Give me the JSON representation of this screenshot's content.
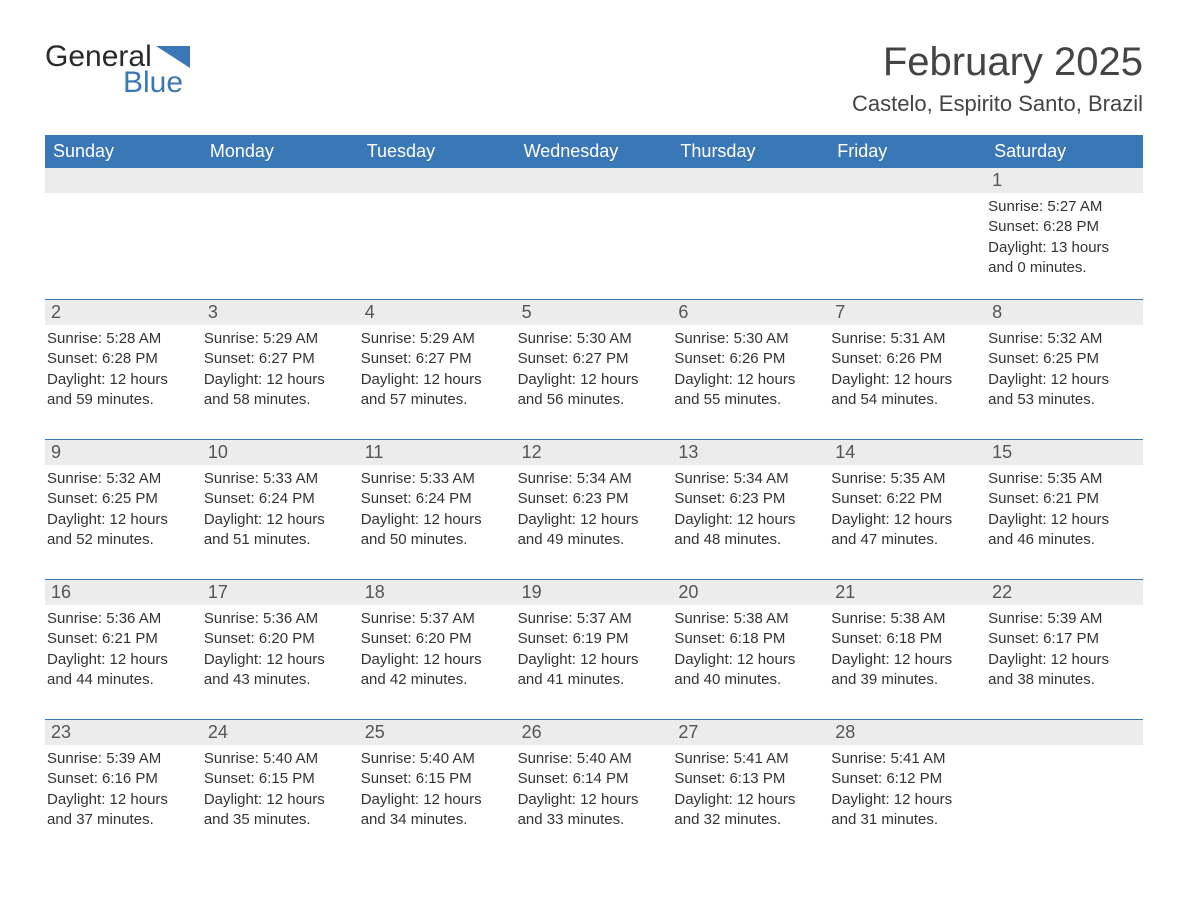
{
  "colors": {
    "accent": "#3a77b7",
    "background": "#ffffff",
    "strip": "#ececec",
    "text": "#333333",
    "title": "#444444"
  },
  "logo": {
    "word1": "General",
    "word2": "Blue",
    "icon_fill": "#3a77b7"
  },
  "header": {
    "month_title": "February 2025",
    "location": "Castelo, Espirito Santo, Brazil"
  },
  "weekdays": [
    "Sunday",
    "Monday",
    "Tuesday",
    "Wednesday",
    "Thursday",
    "Friday",
    "Saturday"
  ],
  "calendar": {
    "type": "table",
    "columns": 7,
    "header_bg": "#3a77b7",
    "header_text_color": "#ffffff",
    "strip_bg": "#ececec",
    "row_divider_color": "#3a77b7",
    "daynum_fontsize": 18,
    "body_fontsize": 15,
    "weekday_fontsize": 18
  },
  "weeks": [
    [
      {
        "day": "",
        "sunrise": "",
        "sunset": "",
        "daylight": ""
      },
      {
        "day": "",
        "sunrise": "",
        "sunset": "",
        "daylight": ""
      },
      {
        "day": "",
        "sunrise": "",
        "sunset": "",
        "daylight": ""
      },
      {
        "day": "",
        "sunrise": "",
        "sunset": "",
        "daylight": ""
      },
      {
        "day": "",
        "sunrise": "",
        "sunset": "",
        "daylight": ""
      },
      {
        "day": "",
        "sunrise": "",
        "sunset": "",
        "daylight": ""
      },
      {
        "day": "1",
        "sunrise": "Sunrise: 5:27 AM",
        "sunset": "Sunset: 6:28 PM",
        "daylight": "Daylight: 13 hours and 0 minutes."
      }
    ],
    [
      {
        "day": "2",
        "sunrise": "Sunrise: 5:28 AM",
        "sunset": "Sunset: 6:28 PM",
        "daylight": "Daylight: 12 hours and 59 minutes."
      },
      {
        "day": "3",
        "sunrise": "Sunrise: 5:29 AM",
        "sunset": "Sunset: 6:27 PM",
        "daylight": "Daylight: 12 hours and 58 minutes."
      },
      {
        "day": "4",
        "sunrise": "Sunrise: 5:29 AM",
        "sunset": "Sunset: 6:27 PM",
        "daylight": "Daylight: 12 hours and 57 minutes."
      },
      {
        "day": "5",
        "sunrise": "Sunrise: 5:30 AM",
        "sunset": "Sunset: 6:27 PM",
        "daylight": "Daylight: 12 hours and 56 minutes."
      },
      {
        "day": "6",
        "sunrise": "Sunrise: 5:30 AM",
        "sunset": "Sunset: 6:26 PM",
        "daylight": "Daylight: 12 hours and 55 minutes."
      },
      {
        "day": "7",
        "sunrise": "Sunrise: 5:31 AM",
        "sunset": "Sunset: 6:26 PM",
        "daylight": "Daylight: 12 hours and 54 minutes."
      },
      {
        "day": "8",
        "sunrise": "Sunrise: 5:32 AM",
        "sunset": "Sunset: 6:25 PM",
        "daylight": "Daylight: 12 hours and 53 minutes."
      }
    ],
    [
      {
        "day": "9",
        "sunrise": "Sunrise: 5:32 AM",
        "sunset": "Sunset: 6:25 PM",
        "daylight": "Daylight: 12 hours and 52 minutes."
      },
      {
        "day": "10",
        "sunrise": "Sunrise: 5:33 AM",
        "sunset": "Sunset: 6:24 PM",
        "daylight": "Daylight: 12 hours and 51 minutes."
      },
      {
        "day": "11",
        "sunrise": "Sunrise: 5:33 AM",
        "sunset": "Sunset: 6:24 PM",
        "daylight": "Daylight: 12 hours and 50 minutes."
      },
      {
        "day": "12",
        "sunrise": "Sunrise: 5:34 AM",
        "sunset": "Sunset: 6:23 PM",
        "daylight": "Daylight: 12 hours and 49 minutes."
      },
      {
        "day": "13",
        "sunrise": "Sunrise: 5:34 AM",
        "sunset": "Sunset: 6:23 PM",
        "daylight": "Daylight: 12 hours and 48 minutes."
      },
      {
        "day": "14",
        "sunrise": "Sunrise: 5:35 AM",
        "sunset": "Sunset: 6:22 PM",
        "daylight": "Daylight: 12 hours and 47 minutes."
      },
      {
        "day": "15",
        "sunrise": "Sunrise: 5:35 AM",
        "sunset": "Sunset: 6:21 PM",
        "daylight": "Daylight: 12 hours and 46 minutes."
      }
    ],
    [
      {
        "day": "16",
        "sunrise": "Sunrise: 5:36 AM",
        "sunset": "Sunset: 6:21 PM",
        "daylight": "Daylight: 12 hours and 44 minutes."
      },
      {
        "day": "17",
        "sunrise": "Sunrise: 5:36 AM",
        "sunset": "Sunset: 6:20 PM",
        "daylight": "Daylight: 12 hours and 43 minutes."
      },
      {
        "day": "18",
        "sunrise": "Sunrise: 5:37 AM",
        "sunset": "Sunset: 6:20 PM",
        "daylight": "Daylight: 12 hours and 42 minutes."
      },
      {
        "day": "19",
        "sunrise": "Sunrise: 5:37 AM",
        "sunset": "Sunset: 6:19 PM",
        "daylight": "Daylight: 12 hours and 41 minutes."
      },
      {
        "day": "20",
        "sunrise": "Sunrise: 5:38 AM",
        "sunset": "Sunset: 6:18 PM",
        "daylight": "Daylight: 12 hours and 40 minutes."
      },
      {
        "day": "21",
        "sunrise": "Sunrise: 5:38 AM",
        "sunset": "Sunset: 6:18 PM",
        "daylight": "Daylight: 12 hours and 39 minutes."
      },
      {
        "day": "22",
        "sunrise": "Sunrise: 5:39 AM",
        "sunset": "Sunset: 6:17 PM",
        "daylight": "Daylight: 12 hours and 38 minutes."
      }
    ],
    [
      {
        "day": "23",
        "sunrise": "Sunrise: 5:39 AM",
        "sunset": "Sunset: 6:16 PM",
        "daylight": "Daylight: 12 hours and 37 minutes."
      },
      {
        "day": "24",
        "sunrise": "Sunrise: 5:40 AM",
        "sunset": "Sunset: 6:15 PM",
        "daylight": "Daylight: 12 hours and 35 minutes."
      },
      {
        "day": "25",
        "sunrise": "Sunrise: 5:40 AM",
        "sunset": "Sunset: 6:15 PM",
        "daylight": "Daylight: 12 hours and 34 minutes."
      },
      {
        "day": "26",
        "sunrise": "Sunrise: 5:40 AM",
        "sunset": "Sunset: 6:14 PM",
        "daylight": "Daylight: 12 hours and 33 minutes."
      },
      {
        "day": "27",
        "sunrise": "Sunrise: 5:41 AM",
        "sunset": "Sunset: 6:13 PM",
        "daylight": "Daylight: 12 hours and 32 minutes."
      },
      {
        "day": "28",
        "sunrise": "Sunrise: 5:41 AM",
        "sunset": "Sunset: 6:12 PM",
        "daylight": "Daylight: 12 hours and 31 minutes."
      },
      {
        "day": "",
        "sunrise": "",
        "sunset": "",
        "daylight": ""
      }
    ]
  ]
}
